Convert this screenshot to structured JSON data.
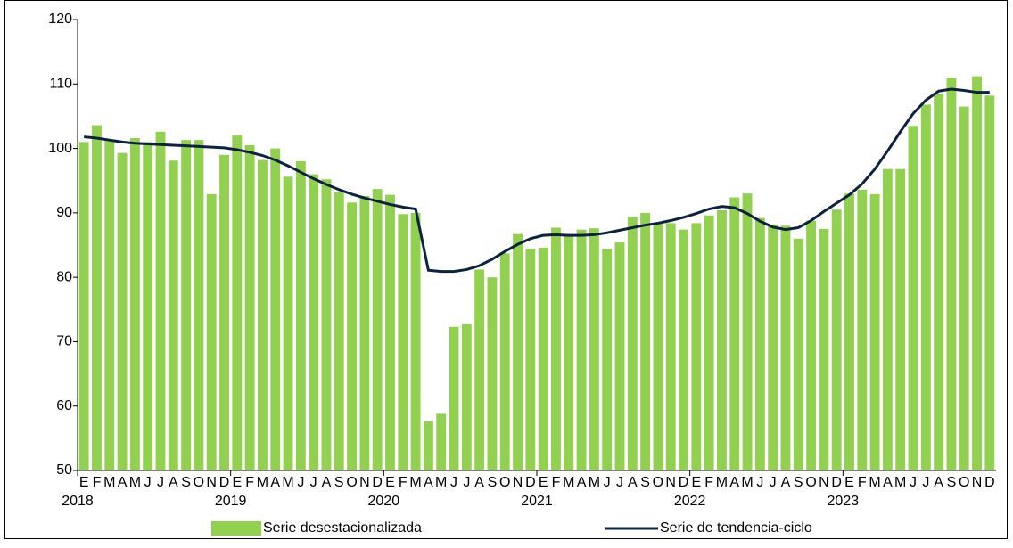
{
  "chart_data": {
    "type": "bar_line",
    "categories": [
      "E",
      "F",
      "M",
      "A",
      "M",
      "J",
      "J",
      "A",
      "S",
      "O",
      "N",
      "D",
      "E",
      "F",
      "M",
      "A",
      "M",
      "J",
      "J",
      "A",
      "S",
      "O",
      "N",
      "D",
      "E",
      "F",
      "M",
      "A",
      "M",
      "J",
      "J",
      "A",
      "S",
      "O",
      "N",
      "D",
      "E",
      "F",
      "M",
      "A",
      "M",
      "J",
      "J",
      "A",
      "S",
      "O",
      "N",
      "D",
      "E",
      "F",
      "M",
      "A",
      "M",
      "J",
      "J",
      "A",
      "S",
      "O",
      "N",
      "D",
      "E",
      "F",
      "M",
      "A",
      "M",
      "J",
      "J",
      "A",
      "S",
      "O",
      "N",
      "D"
    ],
    "years": [
      "2018",
      "2019",
      "2020",
      "2021",
      "2022",
      "2023"
    ],
    "series": [
      {
        "name": "Serie desestacionalizada",
        "type": "bar",
        "color": "#92d050",
        "values": [
          101,
          103.6,
          101.3,
          99.3,
          101.6,
          101,
          102.6,
          98.1,
          101.3,
          101.3,
          92.9,
          99,
          102,
          100.5,
          98.2,
          100,
          95.6,
          98,
          96,
          95.2,
          93.2,
          91.6,
          92.6,
          93.7,
          92.8,
          89.8,
          90,
          57.6,
          58.8,
          72.3,
          72.7,
          81.2,
          80,
          83.7,
          86.7,
          84.4,
          84.6,
          87.7,
          86.6,
          87.4,
          87.6,
          84.4,
          85.4,
          89.4,
          90,
          88.4,
          88.4,
          87.4,
          88.4,
          89.6,
          90.4,
          92.4,
          93,
          89.2,
          88.2,
          88,
          86,
          88.8,
          87.5,
          90.5,
          93,
          93.6,
          92.9,
          96.8,
          96.8,
          103.5,
          106.8,
          108.4,
          111,
          106.5,
          111.2,
          108.2
        ]
      },
      {
        "name": "Serie de tendencia-ciclo",
        "type": "line",
        "color": "#0d2240",
        "values": [
          101.8,
          101.6,
          101.3,
          101,
          100.8,
          100.7,
          100.6,
          100.5,
          100.4,
          100.3,
          100.2,
          100.1,
          99.8,
          99.4,
          98.9,
          98.2,
          97.3,
          96.3,
          95.3,
          94.4,
          93.6,
          92.9,
          92.3,
          91.8,
          91.3,
          90.9,
          90.6,
          81.1,
          80.9,
          80.9,
          81.2,
          81.8,
          82.8,
          84,
          85.1,
          86,
          86.5,
          86.6,
          86.5,
          86.5,
          86.6,
          86.9,
          87.3,
          87.7,
          88.1,
          88.4,
          88.8,
          89.3,
          89.9,
          90.6,
          91,
          90.8,
          89.9,
          88.7,
          87.8,
          87.4,
          87.7,
          88.8,
          90.2,
          91.5,
          92.8,
          94.5,
          96.8,
          99.6,
          102.6,
          105.4,
          107.5,
          108.9,
          109.2,
          109,
          108.7,
          108.7
        ]
      }
    ],
    "ylim": [
      50,
      120
    ],
    "yticks": [
      50,
      60,
      70,
      80,
      90,
      100,
      110,
      120
    ],
    "grid": false,
    "legend": "bottom"
  }
}
